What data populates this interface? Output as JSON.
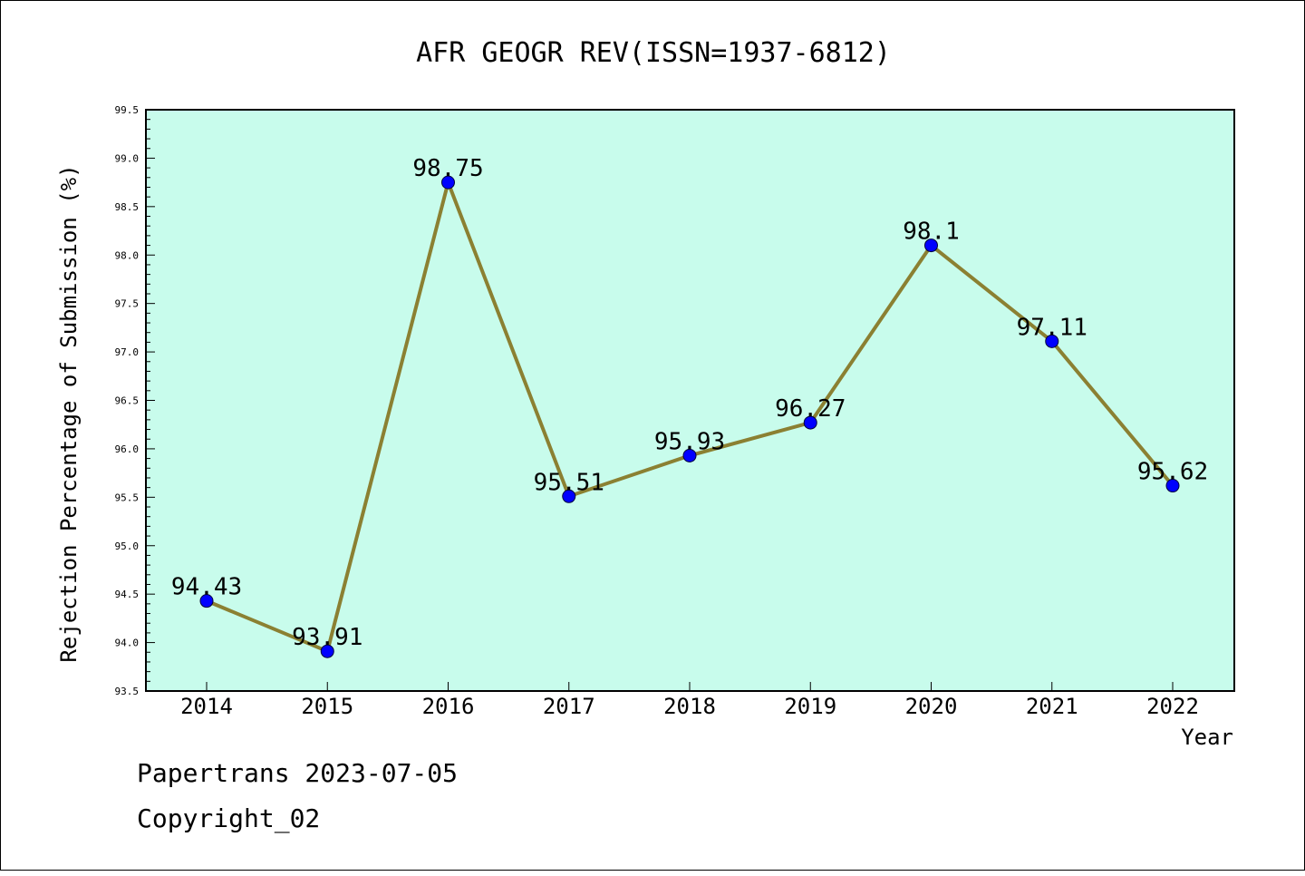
{
  "chart_data": {
    "type": "line",
    "title": "AFR GEOGR REV(ISSN=1937-6812)",
    "xlabel": "Year",
    "ylabel": "Rejection Percentage of Submission (%)",
    "categories": [
      "2014",
      "2015",
      "2016",
      "2017",
      "2018",
      "2019",
      "2020",
      "2021",
      "2022"
    ],
    "values": [
      94.43,
      93.91,
      98.75,
      95.51,
      95.93,
      96.27,
      98.1,
      97.11,
      95.62
    ],
    "data_labels": [
      "94.43",
      "93.91",
      "98.75",
      "95.51",
      "95.93",
      "96.27",
      "98.1",
      "97.11",
      "95.62"
    ],
    "ylim": [
      93.5,
      99.5
    ],
    "yticks": [
      "93.5",
      "94.0",
      "94.5",
      "95.0",
      "95.5",
      "96.0",
      "96.5",
      "97.0",
      "97.5",
      "98.0",
      "98.5",
      "99.0",
      "99.5"
    ],
    "grid": false,
    "colors": {
      "plot_background": "#c8fcec",
      "line": "#8b8032",
      "marker": "#0000ff"
    }
  },
  "footer": {
    "line1": "Papertrans 2023-07-05",
    "line2": "Copyright_02"
  }
}
